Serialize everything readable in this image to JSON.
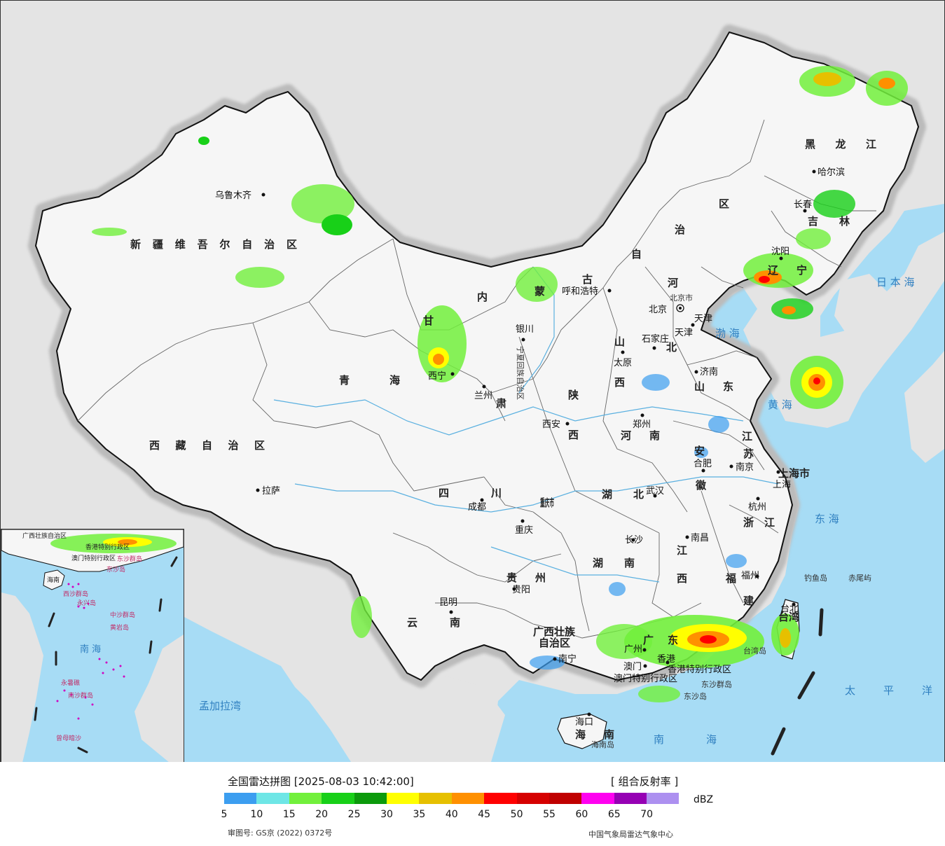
{
  "map": {
    "colors": {
      "sea": "#a7dcf5",
      "land_china": "#f6f6f6",
      "land_outside": "#e4e4e4",
      "border": "#111111",
      "river": "#5ab0e0"
    },
    "provinces": [
      {
        "id": "xinjiang",
        "label": "新疆维吾尔自治区"
      },
      {
        "id": "xizang",
        "label": "西藏自治区"
      },
      {
        "id": "qinghai-1",
        "label": "青"
      },
      {
        "id": "qinghai-2",
        "label": "海"
      },
      {
        "id": "gansu-1",
        "label": "甘"
      },
      {
        "id": "gansu-2",
        "label": "肃"
      },
      {
        "id": "neimenggu-1",
        "label": "内"
      },
      {
        "id": "neimenggu-2",
        "label": "蒙"
      },
      {
        "id": "neimenggu-3",
        "label": "古"
      },
      {
        "id": "neimenggu-4",
        "label": "自"
      },
      {
        "id": "neimenggu-5",
        "label": "治"
      },
      {
        "id": "neimenggu-6",
        "label": "区"
      },
      {
        "id": "heilongjiang",
        "label": "黑 龙 江"
      },
      {
        "id": "jilin",
        "label": "吉 林"
      },
      {
        "id": "liaoning",
        "label": "辽 宁"
      },
      {
        "id": "hebei-1",
        "label": "河"
      },
      {
        "id": "hebei-2",
        "label": "北"
      },
      {
        "id": "shanxi-1",
        "label": "山"
      },
      {
        "id": "shanxi-2",
        "label": "西"
      },
      {
        "id": "shandong",
        "label": "山 东"
      },
      {
        "id": "henan",
        "label": "河 南"
      },
      {
        "id": "shaanxi-1",
        "label": "陕"
      },
      {
        "id": "shaanxi-2",
        "label": "西"
      },
      {
        "id": "ningxia",
        "label": "宁夏回族自治区"
      },
      {
        "id": "sichuan",
        "label": "四 川"
      },
      {
        "id": "chongqing",
        "label": "重庆市"
      },
      {
        "id": "hubei",
        "label": "湖 北"
      },
      {
        "id": "hunan",
        "label": "湖 南"
      },
      {
        "id": "jiangxi-1",
        "label": "江"
      },
      {
        "id": "jiangxi-2",
        "label": "西"
      },
      {
        "id": "anhui-1",
        "label": "安"
      },
      {
        "id": "anhui-2",
        "label": "徽"
      },
      {
        "id": "jiangsu-1",
        "label": "江"
      },
      {
        "id": "jiangsu-2",
        "label": "苏"
      },
      {
        "id": "zhejiang",
        "label": "浙 江"
      },
      {
        "id": "fujian-1",
        "label": "福"
      },
      {
        "id": "fujian-2",
        "label": "建"
      },
      {
        "id": "guizhou",
        "label": "贵 州"
      },
      {
        "id": "yunnan",
        "label": "云 南"
      },
      {
        "id": "guangxi-1",
        "label": "广西壮族"
      },
      {
        "id": "guangxi-2",
        "label": "自治区"
      },
      {
        "id": "guangdong",
        "label": "广 东"
      },
      {
        "id": "hainan",
        "label": "海 南"
      },
      {
        "id": "taiwan",
        "label": "台 湾"
      },
      {
        "id": "shanghai",
        "label": "上海市"
      },
      {
        "id": "tianjin",
        "label": "天津"
      },
      {
        "id": "beijing",
        "label": "北京市"
      },
      {
        "id": "hongkong",
        "label": "香港特别行政区"
      },
      {
        "id": "macau",
        "label": "澳门特别行政区"
      }
    ],
    "cities": [
      {
        "id": "urumqi",
        "label": "乌鲁木齐"
      },
      {
        "id": "lhasa",
        "label": "拉萨"
      },
      {
        "id": "xining",
        "label": "西宁"
      },
      {
        "id": "lanzhou",
        "label": "兰州"
      },
      {
        "id": "yinchuan",
        "label": "银川"
      },
      {
        "id": "hohhot",
        "label": "呼和浩特"
      },
      {
        "id": "beijing",
        "label": "北京"
      },
      {
        "id": "tianjin",
        "label": "天津"
      },
      {
        "id": "shijiazhuang",
        "label": "石家庄"
      },
      {
        "id": "taiyuan",
        "label": "太原"
      },
      {
        "id": "jinan",
        "label": "济南"
      },
      {
        "id": "zhengzhou",
        "label": "郑州"
      },
      {
        "id": "xian",
        "label": "西安"
      },
      {
        "id": "harbin",
        "label": "哈尔滨"
      },
      {
        "id": "changchun",
        "label": "长春"
      },
      {
        "id": "shenyang",
        "label": "沈阳"
      },
      {
        "id": "hefei",
        "label": "合肥"
      },
      {
        "id": "nanjing",
        "label": "南京"
      },
      {
        "id": "shanghai",
        "label": "上海"
      },
      {
        "id": "hangzhou",
        "label": "杭州"
      },
      {
        "id": "wuhan",
        "label": "武汉"
      },
      {
        "id": "chengdu",
        "label": "成都"
      },
      {
        "id": "chongqing",
        "label": "重庆"
      },
      {
        "id": "changsha",
        "label": "长沙"
      },
      {
        "id": "nanchang",
        "label": "南昌"
      },
      {
        "id": "fuzhou",
        "label": "福州"
      },
      {
        "id": "guiyang",
        "label": "贵阳"
      },
      {
        "id": "kunming",
        "label": "昆明"
      },
      {
        "id": "nanning",
        "label": "南宁"
      },
      {
        "id": "guangzhou",
        "label": "广州"
      },
      {
        "id": "hongkong",
        "label": "香港"
      },
      {
        "id": "macau",
        "label": "澳门"
      },
      {
        "id": "taibei",
        "label": "台北"
      },
      {
        "id": "haikou",
        "label": "海口"
      }
    ],
    "seas": [
      {
        "id": "bohai",
        "label": "渤 海"
      },
      {
        "id": "huanghai",
        "label": "黄 海"
      },
      {
        "id": "donghai",
        "label": "东 海"
      },
      {
        "id": "nanhai",
        "label": "南 海"
      },
      {
        "id": "taipingyang",
        "label": "太 平 洋"
      },
      {
        "id": "ribenhai",
        "label": "日 本 海"
      },
      {
        "id": "mengjialawan",
        "label": "孟加拉湾"
      }
    ],
    "islands": [
      {
        "id": "diaoyu",
        "label": "钓鱼岛"
      },
      {
        "id": "chiwei",
        "label": "赤尾屿"
      },
      {
        "id": "taiwan-dao",
        "label": "台湾岛"
      },
      {
        "id": "dongsha-qundao",
        "label": "东沙群岛"
      },
      {
        "id": "dongsha-dao",
        "label": "东沙岛"
      },
      {
        "id": "hainan-dao",
        "label": "海南岛"
      }
    ],
    "inset_labels": [
      {
        "id": "gx",
        "label": "广西壮族自治区"
      },
      {
        "id": "hk",
        "label": "香港特别行政区"
      },
      {
        "id": "mo",
        "label": "澳门特别行政区"
      },
      {
        "id": "ds",
        "label": "东沙群岛"
      },
      {
        "id": "dsd",
        "label": "东沙岛"
      },
      {
        "id": "hn",
        "label": "海南"
      },
      {
        "id": "xs",
        "label": "西沙群岛"
      },
      {
        "id": "yx",
        "label": "永兴岛"
      },
      {
        "id": "zs",
        "label": "中沙群岛"
      },
      {
        "id": "hy",
        "label": "黄岩岛"
      },
      {
        "id": "ns-sea",
        "label": "南 海"
      },
      {
        "id": "ys",
        "label": "永暑礁"
      },
      {
        "id": "nsq",
        "label": "南沙群岛"
      },
      {
        "id": "zm",
        "label": "曾母暗沙"
      }
    ]
  },
  "legend": {
    "title": "全国雷达拼图 [2025-08-03 10:42:00]",
    "product": "[ 组合反射率 ]",
    "unit": "dBZ",
    "colors": [
      "#3c9ef0",
      "#6ee6e6",
      "#72f03c",
      "#18d018",
      "#0c9a0c",
      "#ffff00",
      "#e6c000",
      "#ff9000",
      "#ff0000",
      "#d60000",
      "#c00000",
      "#ff00f0",
      "#9600b4",
      "#ad90f0"
    ],
    "ticks": [
      "5",
      "10",
      "15",
      "20",
      "25",
      "30",
      "35",
      "40",
      "45",
      "50",
      "55",
      "60",
      "65",
      "70"
    ],
    "review_number": "审图号: GS京 (2022) 0372号",
    "credit": "中国气象局雷达气象中心"
  }
}
